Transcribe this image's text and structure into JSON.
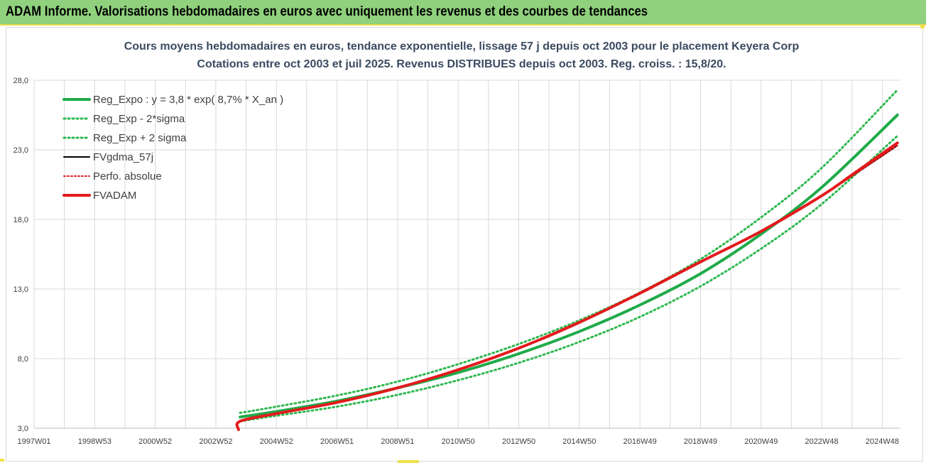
{
  "header": {
    "title": "ADAM Informe. Valorisations hebdomadaires en euros avec uniquement les revenus et des courbes de tendances"
  },
  "chart_data": {
    "type": "line",
    "title": "Cours moyens hebdomadaires en euros, tendance exponentielle, lissage 57 j depuis oct 2003 pour le placement Keyera Corp",
    "subtitle": "Cotations entre oct 2003 et juil 2025. Revenus DISTRIBUES depuis oct 2003. Reg. croiss. : 15,8/20.",
    "xlabel": "",
    "ylabel": "",
    "x_tick_labels": [
      "1997W01",
      "1998W53",
      "2000W52",
      "2002W52",
      "2004W52",
      "2006W51",
      "2008W51",
      "2010W50",
      "2012W50",
      "2014W50",
      "2016W49",
      "2018W49",
      "2020W49",
      "2022W48",
      "2024W48"
    ],
    "x_tick_years": [
      1997.0,
      1999.0,
      2001.0,
      2003.0,
      2005.0,
      2007.0,
      2009.0,
      2011.0,
      2013.0,
      2015.0,
      2017.0,
      2019.0,
      2021.0,
      2023.0,
      2025.0
    ],
    "xlim": [
      1997.0,
      2025.6
    ],
    "ylim": [
      3.0,
      28.0
    ],
    "y_ticks": [
      3.0,
      8.0,
      13.0,
      18.0,
      23.0,
      28.0
    ],
    "y_tick_labels": [
      "3,0",
      "8,0",
      "13,0",
      "18,0",
      "23,0",
      "28,0"
    ],
    "grid": true,
    "legend_position": "top-left",
    "colors": {
      "reg_expo": "#1faa4a",
      "reg_band": "#2eb84f",
      "fvgdma": "#000000",
      "perfo": "#e31a1c",
      "fvadam": "#e31a1c",
      "grid": "#d9d9d9"
    },
    "series": [
      {
        "name": "Reg_Expo : y = 3,8 * exp( 8,7% *  X_an )",
        "style": "solid-thick",
        "x": [
          2003.8,
          2005,
          2007,
          2009,
          2011,
          2013,
          2015,
          2017,
          2019,
          2021,
          2023,
          2025.5
        ],
        "y": [
          3.8,
          4.2,
          4.95,
          5.9,
          7.0,
          8.35,
          9.95,
          11.85,
          14.1,
          16.95,
          20.3,
          25.5
        ]
      },
      {
        "name": "Reg_Exp - 2*sigma",
        "style": "dotted",
        "x": [
          2003.8,
          2005,
          2007,
          2009,
          2011,
          2013,
          2015,
          2017,
          2019,
          2021,
          2023,
          2025.5
        ],
        "y": [
          3.5,
          3.9,
          4.55,
          5.4,
          6.45,
          7.7,
          9.2,
          11.0,
          13.2,
          15.9,
          19.1,
          24.0
        ]
      },
      {
        "name": "Reg_Exp + 2 sigma",
        "style": "dotted",
        "x": [
          2003.8,
          2005,
          2007,
          2009,
          2011,
          2013,
          2015,
          2017,
          2019,
          2021,
          2023,
          2025.5
        ],
        "y": [
          4.1,
          4.55,
          5.35,
          6.35,
          7.6,
          9.05,
          10.75,
          12.75,
          15.15,
          18.15,
          21.7,
          27.3
        ]
      },
      {
        "name": "FVgdma_57j",
        "style": "solid-thin",
        "x": [
          2003.8,
          2005,
          2007,
          2009,
          2011,
          2013,
          2015,
          2017,
          2019,
          2021,
          2023,
          2025.5
        ],
        "y": [
          3.5,
          4.05,
          4.85,
          5.9,
          7.2,
          8.75,
          10.6,
          12.7,
          14.95,
          17.15,
          19.7,
          23.3
        ]
      },
      {
        "name": "Perfo. absolue",
        "style": "dotted",
        "x": [
          2003.8,
          2005,
          2007,
          2009,
          2011,
          2013,
          2015,
          2017,
          2019,
          2021,
          2023,
          2025.5
        ],
        "y": [
          3.5,
          4.05,
          4.85,
          5.9,
          7.2,
          8.75,
          10.6,
          12.7,
          14.95,
          17.15,
          19.7,
          23.3
        ]
      },
      {
        "name": "FVADAM",
        "style": "solid-thick",
        "x": [
          2003.75,
          2003.8,
          2005,
          2007,
          2009,
          2011,
          2013,
          2015,
          2017,
          2019,
          2021,
          2023,
          2024,
          2025.5
        ],
        "y": [
          2.9,
          3.5,
          4.05,
          4.85,
          5.9,
          7.2,
          8.75,
          10.6,
          12.7,
          14.95,
          17.15,
          19.7,
          21.2,
          23.5
        ]
      }
    ]
  }
}
